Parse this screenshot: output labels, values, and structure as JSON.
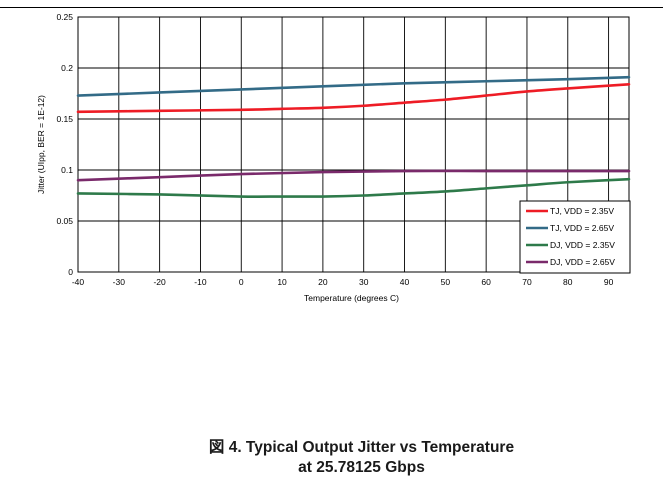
{
  "chart_data": {
    "type": "line",
    "xlabel": "Temperature (degrees C)",
    "ylabel": "Jitter (UIpp, BER = 1E-12)",
    "xlim": [
      -40,
      95
    ],
    "ylim": [
      0,
      0.25
    ],
    "xticks": [
      -40,
      -30,
      -20,
      -10,
      0,
      10,
      20,
      30,
      40,
      50,
      60,
      70,
      80,
      90
    ],
    "yticks": [
      0,
      0.05,
      0.1,
      0.15,
      0.2,
      0.25
    ],
    "ytick_labels": [
      "0",
      "0.05",
      "0.1",
      "0.15",
      "0.2",
      "0.25"
    ],
    "grid": true,
    "legend_position": "bottom-right",
    "series": [
      {
        "name": "TJ, VDD = 2.35V",
        "color": "#ee1c25",
        "x": [
          -40,
          -20,
          0,
          10,
          20,
          30,
          40,
          50,
          60,
          70,
          80,
          95
        ],
        "y": [
          0.157,
          0.158,
          0.159,
          0.16,
          0.161,
          0.163,
          0.166,
          0.169,
          0.173,
          0.177,
          0.18,
          0.184
        ]
      },
      {
        "name": "TJ, VDD = 2.65V",
        "color": "#336b87",
        "x": [
          -40,
          -20,
          0,
          20,
          40,
          60,
          80,
          95
        ],
        "y": [
          0.173,
          0.176,
          0.179,
          0.182,
          0.185,
          0.187,
          0.189,
          0.191
        ]
      },
      {
        "name": "DJ, VDD = 2.35V",
        "color": "#2e7a4a",
        "x": [
          -40,
          -20,
          0,
          10,
          20,
          30,
          40,
          50,
          60,
          70,
          80,
          95
        ],
        "y": [
          0.077,
          0.076,
          0.074,
          0.074,
          0.074,
          0.075,
          0.077,
          0.079,
          0.082,
          0.085,
          0.088,
          0.091
        ]
      },
      {
        "name": "DJ, VDD = 2.65V",
        "color": "#7a2a6b",
        "x": [
          -40,
          -20,
          0,
          20,
          40,
          60,
          80,
          95
        ],
        "y": [
          0.09,
          0.093,
          0.096,
          0.098,
          0.099,
          0.099,
          0.099,
          0.099
        ]
      }
    ]
  },
  "caption": {
    "line1": "図 4. Typical Output Jitter vs Temperature",
    "line2": "at 25.78125 Gbps"
  }
}
